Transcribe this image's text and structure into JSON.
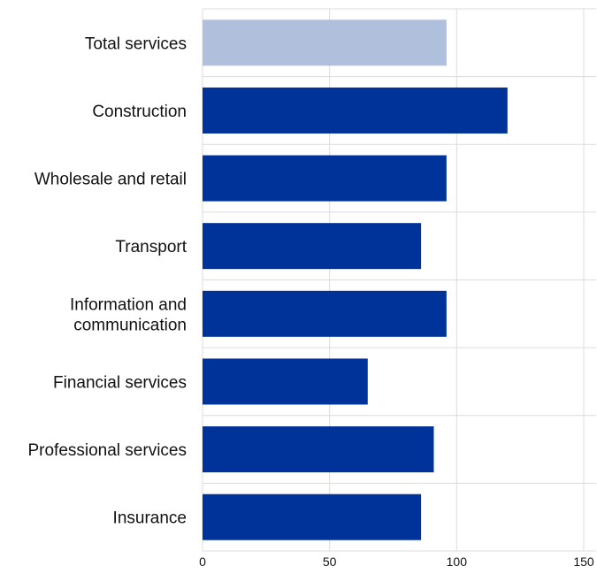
{
  "chart_data": {
    "type": "bar",
    "orientation": "horizontal",
    "categories": [
      "Total services",
      "Construction",
      "Wholesale and retail",
      "Transport",
      "Information and communication",
      "Financial services",
      "Professional services",
      "Insurance"
    ],
    "values": [
      96,
      120,
      96,
      86,
      96,
      65,
      91,
      86
    ],
    "highlight_index": 0,
    "title": "",
    "xlabel": "",
    "ylabel": "",
    "xlim": [
      0,
      150
    ],
    "xticks": [
      "0",
      "50",
      "100",
      "150"
    ],
    "grid": true,
    "colors": {
      "bar": "#003399",
      "highlight": "#b0bfdb"
    }
  }
}
